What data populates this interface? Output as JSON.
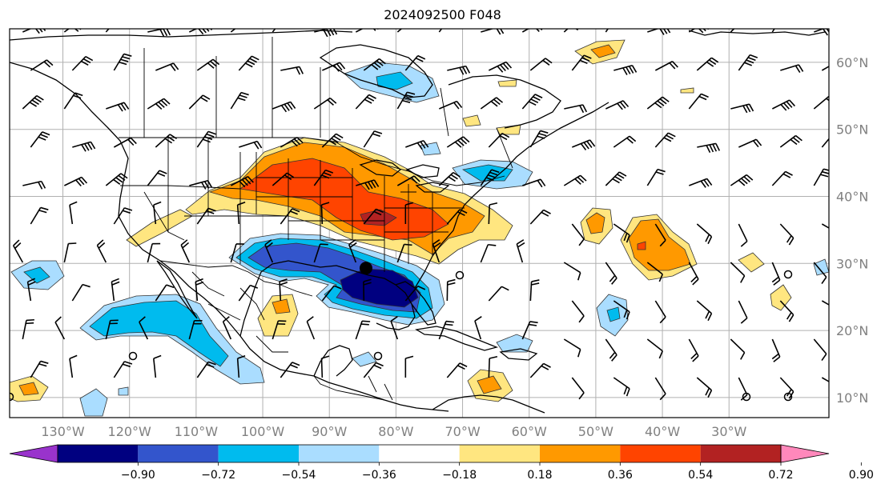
{
  "title": "2024092500 F048",
  "map": {
    "lon_labels": [
      "130°W",
      "120°W",
      "110°W",
      "100°W",
      "90°W",
      "80°W",
      "70°W",
      "60°W",
      "50°W",
      "40°W",
      "30°W"
    ],
    "lat_labels": [
      "60°N",
      "50°N",
      "40°N",
      "30°N",
      "20°N",
      "10°N"
    ],
    "lon_range": [
      -138,
      -15
    ],
    "lat_range": [
      7,
      65
    ],
    "marker": {
      "lon": -84.5,
      "lat": 29.3,
      "symbol": "filled-circle"
    }
  },
  "colorbar": {
    "ticks": [
      "−0.90",
      "−0.72",
      "−0.54",
      "−0.36",
      "−0.18",
      "0.18",
      "0.36",
      "0.54",
      "0.72",
      "0.90"
    ],
    "colors": [
      "#9933cc",
      "#000080",
      "#3355cc",
      "#00bbee",
      "#aaddff",
      "#ffffff",
      "#ffe680",
      "#ff9900",
      "#ff4400",
      "#b22222",
      "#ff88bb"
    ]
  },
  "legend_colors": {
    "neg_1": "#aaddff",
    "neg_2": "#00bbee",
    "neg_3": "#3355cc",
    "neg_4": "#000080",
    "pos_1": "#ffe680",
    "pos_2": "#ff9900",
    "pos_3": "#ff4400"
  }
}
